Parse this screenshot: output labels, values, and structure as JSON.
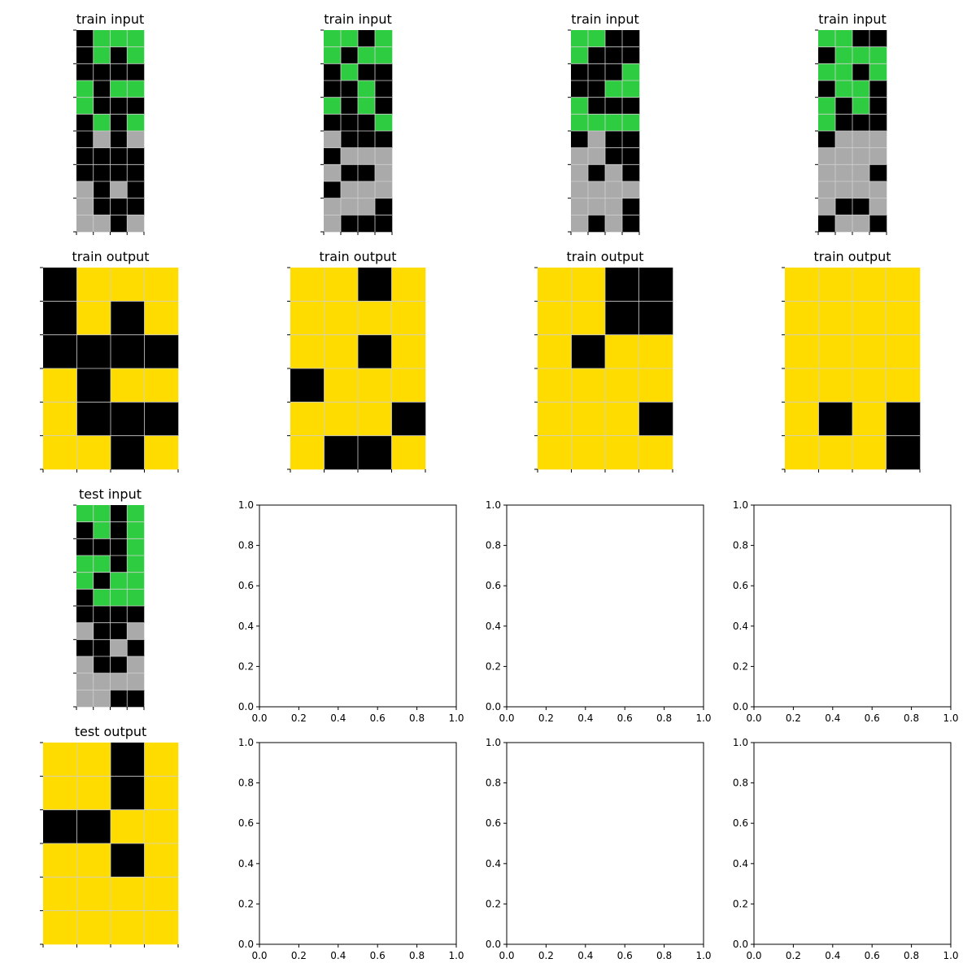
{
  "palette": {
    "0": "#000000",
    "3": "#2ecc40",
    "4": "#ffdc00",
    "5": "#aaaaaa"
  },
  "grid_line_color": "#d0d0d0",
  "grid_panels": [
    {
      "title": "train input",
      "grid": [
        [
          0,
          3,
          3,
          3
        ],
        [
          0,
          3,
          0,
          3
        ],
        [
          0,
          0,
          0,
          0
        ],
        [
          3,
          0,
          3,
          3
        ],
        [
          3,
          0,
          0,
          0
        ],
        [
          0,
          3,
          0,
          3
        ],
        [
          0,
          5,
          0,
          5
        ],
        [
          0,
          0,
          0,
          0
        ],
        [
          0,
          0,
          0,
          0
        ],
        [
          5,
          0,
          5,
          0
        ],
        [
          5,
          0,
          0,
          0
        ],
        [
          5,
          5,
          0,
          5
        ]
      ]
    },
    {
      "title": "train input",
      "grid": [
        [
          3,
          3,
          0,
          3
        ],
        [
          3,
          0,
          3,
          3
        ],
        [
          0,
          3,
          0,
          0
        ],
        [
          0,
          0,
          3,
          0
        ],
        [
          3,
          0,
          3,
          0
        ],
        [
          0,
          0,
          0,
          3
        ],
        [
          5,
          0,
          0,
          0
        ],
        [
          0,
          5,
          5,
          5
        ],
        [
          5,
          0,
          0,
          5
        ],
        [
          0,
          5,
          5,
          5
        ],
        [
          5,
          5,
          5,
          0
        ],
        [
          5,
          0,
          0,
          0
        ]
      ]
    },
    {
      "title": "train input",
      "grid": [
        [
          3,
          3,
          0,
          0
        ],
        [
          3,
          0,
          0,
          0
        ],
        [
          0,
          0,
          0,
          3
        ],
        [
          0,
          0,
          3,
          3
        ],
        [
          3,
          0,
          0,
          0
        ],
        [
          3,
          3,
          3,
          3
        ],
        [
          0,
          5,
          0,
          0
        ],
        [
          5,
          5,
          0,
          0
        ],
        [
          5,
          0,
          5,
          0
        ],
        [
          5,
          5,
          5,
          5
        ],
        [
          5,
          5,
          5,
          0
        ],
        [
          5,
          0,
          5,
          0
        ]
      ]
    },
    {
      "title": "train input",
      "grid": [
        [
          3,
          3,
          0,
          0
        ],
        [
          0,
          3,
          3,
          3
        ],
        [
          3,
          3,
          0,
          3
        ],
        [
          0,
          3,
          3,
          0
        ],
        [
          3,
          0,
          3,
          0
        ],
        [
          3,
          0,
          0,
          0
        ],
        [
          0,
          5,
          5,
          5
        ],
        [
          5,
          5,
          5,
          5
        ],
        [
          5,
          5,
          5,
          0
        ],
        [
          5,
          5,
          5,
          5
        ],
        [
          5,
          0,
          0,
          5
        ],
        [
          0,
          5,
          5,
          0
        ]
      ]
    },
    {
      "title": "train output",
      "grid": [
        [
          0,
          4,
          4,
          4
        ],
        [
          0,
          4,
          0,
          4
        ],
        [
          0,
          0,
          0,
          0
        ],
        [
          4,
          0,
          4,
          4
        ],
        [
          4,
          0,
          0,
          0
        ],
        [
          4,
          4,
          0,
          4
        ]
      ]
    },
    {
      "title": "train output",
      "grid": [
        [
          4,
          4,
          0,
          4
        ],
        [
          4,
          4,
          4,
          4
        ],
        [
          4,
          4,
          0,
          4
        ],
        [
          0,
          4,
          4,
          4
        ],
        [
          4,
          4,
          4,
          0
        ],
        [
          4,
          0,
          0,
          4
        ]
      ]
    },
    {
      "title": "train output",
      "grid": [
        [
          4,
          4,
          0,
          0
        ],
        [
          4,
          4,
          0,
          0
        ],
        [
          4,
          0,
          4,
          4
        ],
        [
          4,
          4,
          4,
          4
        ],
        [
          4,
          4,
          4,
          0
        ],
        [
          4,
          4,
          4,
          4
        ]
      ]
    },
    {
      "title": "train output",
      "grid": [
        [
          4,
          4,
          4,
          4
        ],
        [
          4,
          4,
          4,
          4
        ],
        [
          4,
          4,
          4,
          4
        ],
        [
          4,
          4,
          4,
          4
        ],
        [
          4,
          0,
          4,
          0
        ],
        [
          4,
          4,
          4,
          0
        ]
      ]
    },
    {
      "title": "test input",
      "grid": [
        [
          3,
          3,
          0,
          3
        ],
        [
          0,
          3,
          0,
          3
        ],
        [
          0,
          0,
          0,
          3
        ],
        [
          3,
          3,
          0,
          3
        ],
        [
          3,
          0,
          3,
          3
        ],
        [
          0,
          3,
          3,
          3
        ],
        [
          0,
          0,
          0,
          0
        ],
        [
          5,
          0,
          0,
          5
        ],
        [
          0,
          0,
          5,
          0
        ],
        [
          5,
          0,
          0,
          5
        ],
        [
          5,
          5,
          5,
          5
        ],
        [
          5,
          5,
          0,
          0
        ]
      ]
    },
    {
      "title": "test output",
      "grid": [
        [
          4,
          4,
          0,
          4
        ],
        [
          4,
          4,
          0,
          4
        ],
        [
          0,
          0,
          4,
          4
        ],
        [
          4,
          4,
          0,
          4
        ],
        [
          4,
          4,
          4,
          4
        ],
        [
          4,
          4,
          4,
          4
        ]
      ]
    }
  ],
  "empty_axes": {
    "tick_labels": [
      "0.0",
      "0.2",
      "0.4",
      "0.6",
      "0.8",
      "1.0"
    ],
    "count": 6
  }
}
